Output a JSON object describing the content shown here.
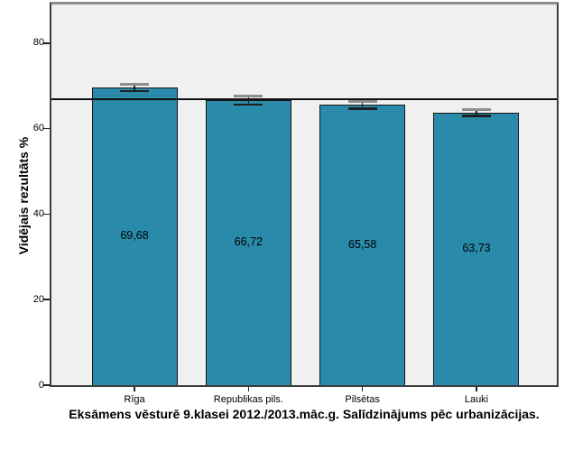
{
  "chart_data": {
    "type": "bar",
    "title": "Eksāmens vēsturē 9.klasei 2012./2013.māc.g. Salīdzinājums pēc urbanizācijas.",
    "ylabel": "Vidējais rezultāts %",
    "xlabel": "",
    "categories": [
      "Rīga",
      "Republikas pils.",
      "Pilsētas",
      "Lauki"
    ],
    "values": [
      69.68,
      66.72,
      65.58,
      63.73
    ],
    "value_labels": [
      "69,68",
      "66,72",
      "65,58",
      "63,73"
    ],
    "errors": [
      0.8,
      1.0,
      0.85,
      0.65
    ],
    "yticks": [
      0,
      20,
      40,
      60,
      80
    ],
    "ylim": [
      0,
      89
    ],
    "reference_line": 66.9,
    "grid": false,
    "legend": null,
    "colors": {
      "bar_fill": "#2a8aa9",
      "bar_border": "#161616",
      "plot_bg": "#f0f0f0",
      "frame": "#3d3d3d",
      "frame_top": "#8d8d8d",
      "reference_line": "#111111",
      "error_cap_top": "#8f8f8f",
      "error_dark": "#1f1f1f",
      "tick": "#222222",
      "text": "#000000"
    }
  }
}
